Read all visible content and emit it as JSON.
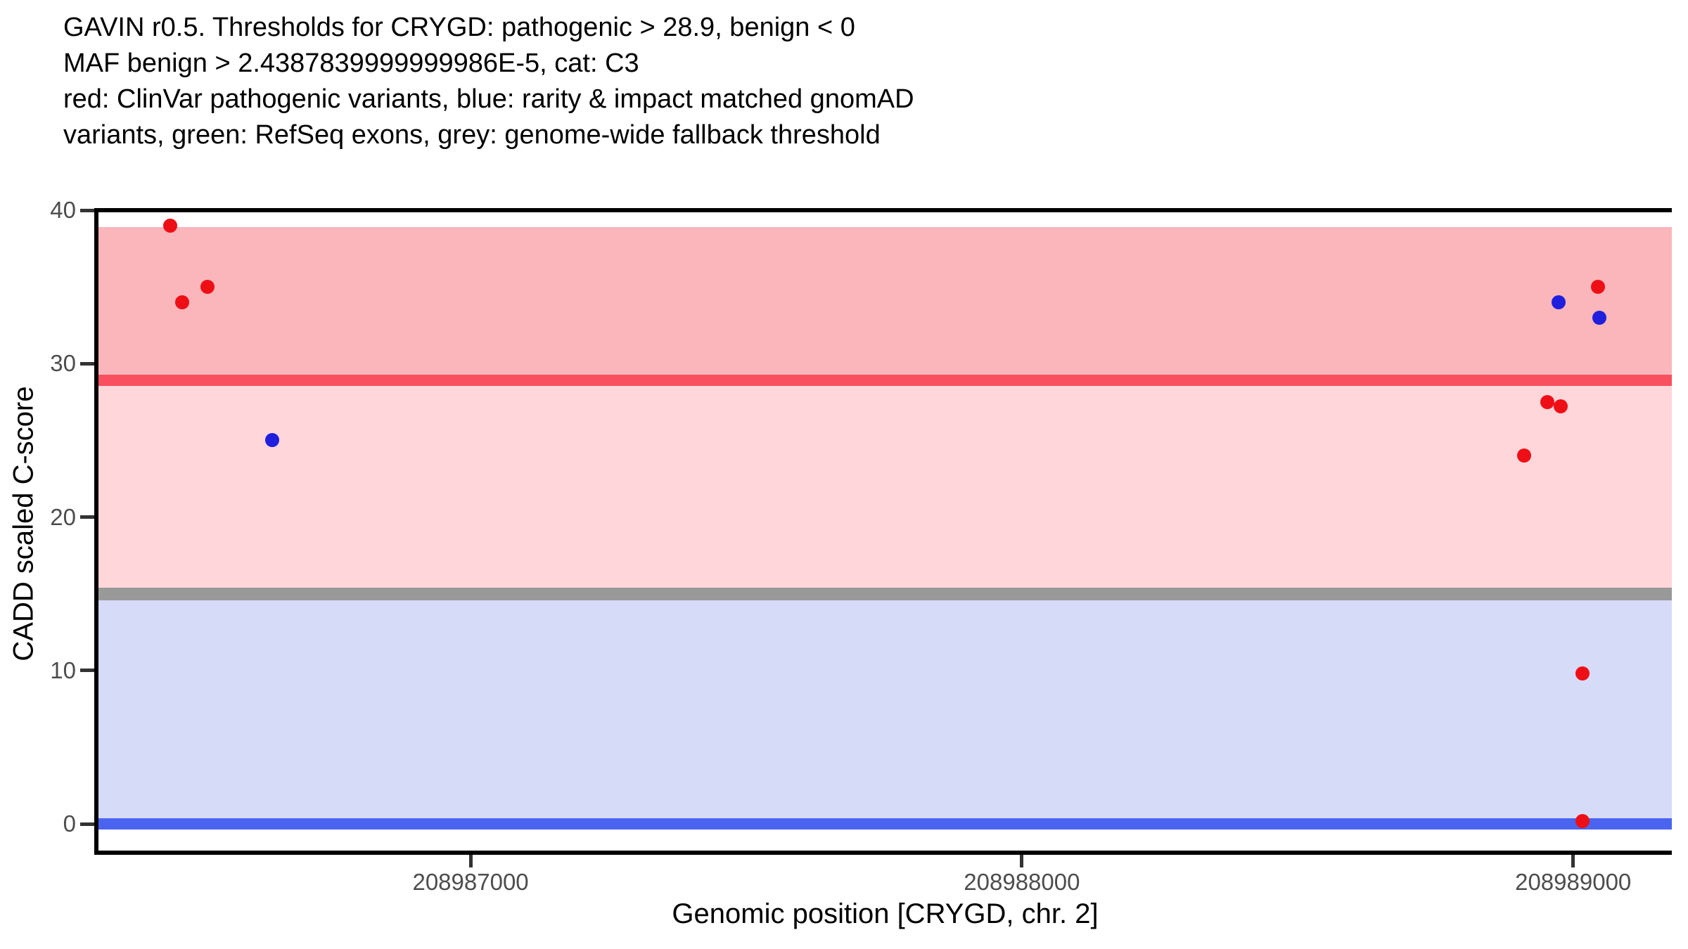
{
  "title_lines": [
    "GAVIN r0.5. Thresholds for CRYGD: pathogenic > 28.9, benign < 0",
    "MAF benign > 2.4387839999999986E-5, cat: C3",
    "red: ClinVar pathogenic variants, blue: rarity & impact matched gnomAD",
    "variants, green: RefSeq exons, grey: genome-wide fallback threshold"
  ],
  "axes": {
    "x": {
      "label": "Genomic position [CRYGD, chr. 2]",
      "ticks": [
        208987000,
        208988000,
        208989000
      ],
      "tick_color": "#4d4d4d"
    },
    "y": {
      "label": "CADD scaled C-score",
      "ticks": [
        0,
        10,
        20,
        30,
        40
      ],
      "tick_color": "#4d4d4d"
    }
  },
  "chart_data": {
    "type": "scatter",
    "title": "GAVIN r0.5. Thresholds for CRYGD: pathogenic > 28.9, benign < 0 MAF benign > 2.4387839999999986E-5, cat: C3 red: ClinVar pathogenic variants, blue: rarity & impact matched gnomAD variants, green: RefSeq exons, grey: genome-wide fallback threshold",
    "xlabel": "Genomic position [CRYGD, chr. 2]",
    "ylabel": "CADD scaled C-score",
    "xlim": [
      208986325,
      208989179
    ],
    "ylim": [
      -1.87,
      40
    ],
    "grid": false,
    "legend": "described in title text",
    "thresholds": [
      {
        "name": "pathogenic-threshold",
        "value": 28.9,
        "color": "#F8505F",
        "thickness": 16
      },
      {
        "name": "genome-wide-fallback-threshold",
        "value": 15,
        "color": "#999999",
        "thickness": 18
      },
      {
        "name": "benign-threshold",
        "value": 0,
        "color": "#4B64EF",
        "thickness": 16
      }
    ],
    "bands": [
      {
        "name": "pathogenic-band",
        "from": 28.9,
        "to": 38.9,
        "color": "#FBB6BB"
      },
      {
        "name": "intermediate-band",
        "from": 15,
        "to": 28.9,
        "color": "#FFD6DA"
      },
      {
        "name": "benign-band",
        "from": 0,
        "to": 15,
        "color": "#D6DBF8"
      }
    ],
    "series": [
      {
        "name": "ClinVar pathogenic variants",
        "color": "#EE0F16",
        "points": [
          [
            208986455,
            39.0
          ],
          [
            208986477,
            34.0
          ],
          [
            208986523,
            35.0
          ],
          [
            208988911,
            24.0
          ],
          [
            208988953,
            27.5
          ],
          [
            208988977,
            27.2
          ],
          [
            208989017,
            9.8
          ],
          [
            208989017,
            0.2
          ],
          [
            208989045,
            35.0
          ]
        ]
      },
      {
        "name": "rarity & impact matched gnomAD variants",
        "color": "#1F1FDD",
        "points": [
          [
            208986640,
            25.0
          ],
          [
            208988974,
            34.0
          ],
          [
            208989048,
            33.0
          ]
        ]
      }
    ]
  }
}
